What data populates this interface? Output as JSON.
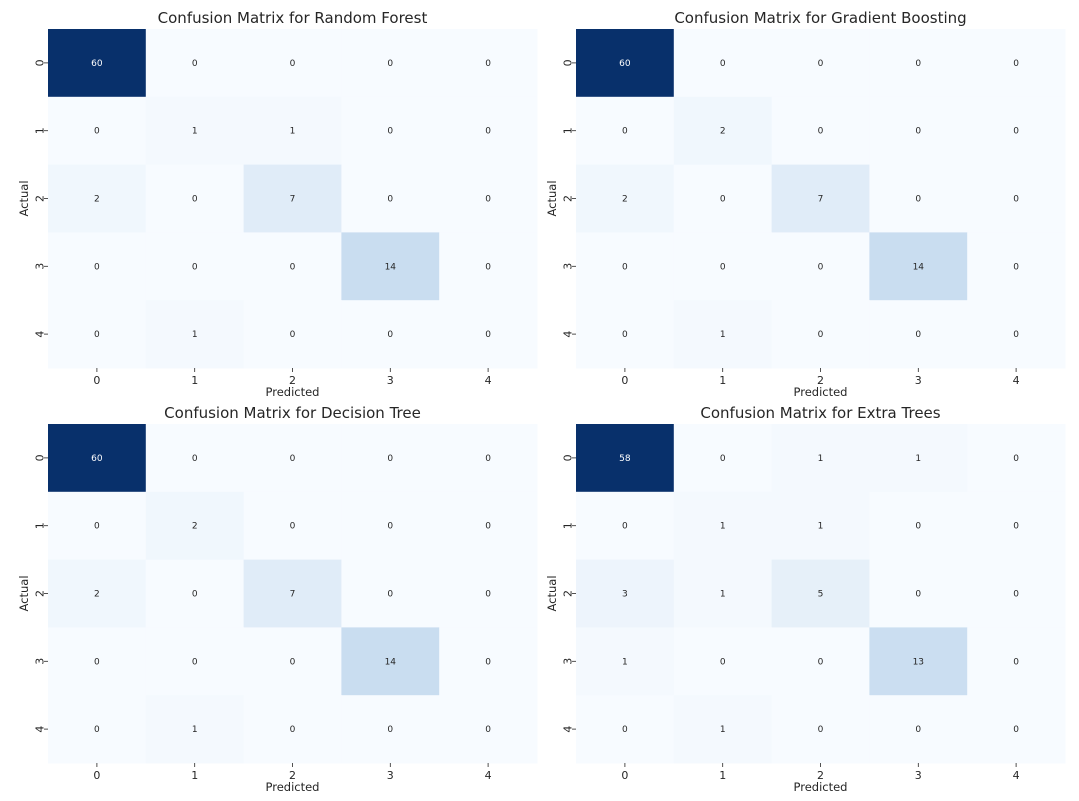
{
  "chart_data": [
    {
      "type": "heatmap",
      "title": "Confusion Matrix for Random Forest",
      "xlabel": "Predicted",
      "ylabel": "Actual",
      "x_ticks": [
        "0",
        "1",
        "2",
        "3",
        "4"
      ],
      "y_ticks": [
        "0",
        "1",
        "2",
        "3",
        "4"
      ],
      "matrix": [
        [
          60,
          0,
          0,
          0,
          0
        ],
        [
          0,
          1,
          1,
          0,
          0
        ],
        [
          2,
          0,
          7,
          0,
          0
        ],
        [
          0,
          0,
          0,
          14,
          0
        ],
        [
          0,
          1,
          0,
          0,
          0
        ]
      ],
      "colormap": "Blues",
      "colorbar": false
    },
    {
      "type": "heatmap",
      "title": "Confusion Matrix for Gradient Boosting",
      "xlabel": "Predicted",
      "ylabel": "Actual",
      "x_ticks": [
        "0",
        "1",
        "2",
        "3",
        "4"
      ],
      "y_ticks": [
        "0",
        "1",
        "2",
        "3",
        "4"
      ],
      "matrix": [
        [
          60,
          0,
          0,
          0,
          0
        ],
        [
          0,
          2,
          0,
          0,
          0
        ],
        [
          2,
          0,
          7,
          0,
          0
        ],
        [
          0,
          0,
          0,
          14,
          0
        ],
        [
          0,
          1,
          0,
          0,
          0
        ]
      ],
      "colormap": "Blues",
      "colorbar": false
    },
    {
      "type": "heatmap",
      "title": "Confusion Matrix for Decision Tree",
      "xlabel": "Predicted",
      "ylabel": "Actual",
      "x_ticks": [
        "0",
        "1",
        "2",
        "3",
        "4"
      ],
      "y_ticks": [
        "0",
        "1",
        "2",
        "3",
        "4"
      ],
      "matrix": [
        [
          60,
          0,
          0,
          0,
          0
        ],
        [
          0,
          2,
          0,
          0,
          0
        ],
        [
          2,
          0,
          7,
          0,
          0
        ],
        [
          0,
          0,
          0,
          14,
          0
        ],
        [
          0,
          1,
          0,
          0,
          0
        ]
      ],
      "colormap": "Blues",
      "colorbar": false
    },
    {
      "type": "heatmap",
      "title": "Confusion Matrix for Extra Trees",
      "xlabel": "Predicted",
      "ylabel": "Actual",
      "x_ticks": [
        "0",
        "1",
        "2",
        "3",
        "4"
      ],
      "y_ticks": [
        "0",
        "1",
        "2",
        "3",
        "4"
      ],
      "matrix": [
        [
          58,
          0,
          1,
          1,
          0
        ],
        [
          0,
          1,
          1,
          0,
          0
        ],
        [
          3,
          1,
          5,
          0,
          0
        ],
        [
          1,
          0,
          0,
          13,
          0
        ],
        [
          0,
          1,
          0,
          0,
          0
        ]
      ],
      "colormap": "Blues",
      "colorbar": false
    }
  ]
}
